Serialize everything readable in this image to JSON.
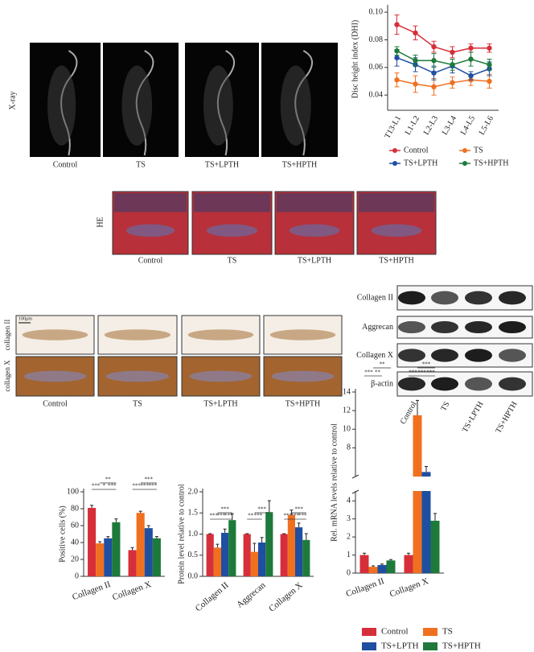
{
  "xray": {
    "label": "X-ray",
    "groups": [
      "Control",
      "TS",
      "TS+LPTH",
      "TS+HPTH"
    ]
  },
  "he": {
    "label": "HE",
    "groups": [
      "Control",
      "TS",
      "TS+LPTH",
      "TS+HPTH"
    ]
  },
  "ihc": {
    "rows": [
      "collagen II",
      "collagen X"
    ],
    "scale": "100μm",
    "groups": [
      "Control",
      "TS",
      "TS+LPTH",
      "TS+HPTH"
    ]
  },
  "western": {
    "rows": [
      "Collagen II",
      "Aggrecan",
      "Collagen X",
      "β-actin"
    ],
    "lanes": [
      "Control",
      "TS",
      "TS+LPTH",
      "TS+HPTH"
    ]
  },
  "chart_data": [
    {
      "type": "line",
      "ylabel": "Disc height index (DHI)",
      "categories": [
        "T13-L1",
        "L1-L2",
        "L2-L3",
        "L3-L4",
        "L4-L5",
        "L5-L6"
      ],
      "ylim": [
        0.029,
        0.103
      ],
      "yticks": [
        0.04,
        0.06,
        0.08,
        {
          "value": 0.1,
          "label": "0.10"
        }
      ],
      "series": [
        {
          "name": "Control",
          "color": "#d62f3a",
          "values": [
            0.091,
            0.085,
            0.075,
            0.071,
            0.074,
            0.074
          ],
          "errors": [
            0.007,
            0.005,
            0.004,
            0.004,
            0.003,
            0.003
          ]
        },
        {
          "name": "TS",
          "color": "#f07020",
          "values": [
            0.051,
            0.048,
            0.046,
            0.049,
            0.051,
            0.05
          ],
          "errors": [
            0.005,
            0.006,
            0.006,
            0.004,
            0.004,
            0.005
          ]
        },
        {
          "name": "TS+LPTH",
          "color": "#1f4fa0",
          "values": [
            0.067,
            0.062,
            0.056,
            0.061,
            0.054,
            0.059
          ],
          "errors": [
            0.006,
            0.005,
            0.005,
            0.005,
            0.003,
            0.005
          ]
        },
        {
          "name": "TS+HPTH",
          "color": "#1e7a3a",
          "values": [
            0.072,
            0.065,
            0.065,
            0.062,
            0.066,
            0.062
          ],
          "errors": [
            0.003,
            0.004,
            0.005,
            0.004,
            0.005,
            0.004
          ]
        }
      ]
    },
    {
      "type": "bar",
      "ylabel": "Positive cells (%)",
      "categories": [
        "Collagen II",
        "Collagen X"
      ],
      "ylim": [
        0,
        100
      ],
      "yticks": [
        0,
        20,
        40,
        60,
        80,
        100
      ],
      "series": [
        {
          "name": "Control",
          "color": "#d62f3a",
          "values": [
            81,
            31
          ],
          "errors": [
            3,
            3
          ]
        },
        {
          "name": "TS",
          "color": "#f07020",
          "values": [
            39,
            75
          ],
          "errors": [
            2,
            2
          ]
        },
        {
          "name": "TS+LPTH",
          "color": "#1f4fa0",
          "values": [
            45,
            57
          ],
          "errors": [
            2,
            3
          ]
        },
        {
          "name": "TS+HPTH",
          "color": "#1e7a3a",
          "values": [
            64,
            45
          ],
          "errors": [
            4,
            2
          ]
        }
      ],
      "annotations": [
        {
          "top": "**",
          "low": [
            "***",
            "*",
            "***"
          ]
        },
        {
          "top": "***",
          "low": [
            "***",
            "***",
            "***"
          ]
        }
      ]
    },
    {
      "type": "bar",
      "ylabel": "Protein level relative to control",
      "categories": [
        "Collagen II",
        "Aggrecan",
        "Collagen X"
      ],
      "ylim": [
        0,
        2
      ],
      "yticks": [
        {
          "value": 0,
          "label": "0.0"
        },
        0.5,
        {
          "value": 1,
          "label": "1.0"
        },
        1.5,
        {
          "value": 2,
          "label": "2.0"
        }
      ],
      "series": [
        {
          "color": "#d62f3a",
          "values": [
            1,
            1,
            1
          ],
          "errors": [
            0.01,
            0.01,
            0.01
          ]
        },
        {
          "color": "#f07020",
          "values": [
            0.68,
            0.58,
            1.45
          ],
          "errors": [
            0.08,
            0.2,
            0.12
          ]
        },
        {
          "color": "#1f4fa0",
          "values": [
            1.03,
            0.8,
            1.16
          ],
          "errors": [
            0.09,
            0.12,
            0.1
          ]
        },
        {
          "color": "#1e7a3a",
          "values": [
            1.33,
            1.52,
            0.86
          ],
          "errors": [
            0.15,
            0.27,
            0.15
          ]
        }
      ],
      "annotations": [
        {
          "top": "***",
          "low": [
            "***",
            "***",
            "***"
          ]
        },
        {
          "top": "***",
          "low": [
            "**",
            "***"
          ]
        },
        {
          "top": "***",
          "low": [
            "***",
            "***",
            "***"
          ]
        }
      ]
    },
    {
      "type": "bar",
      "ylabel": "Rel. mRNA levels relative to control",
      "categories": [
        "Collagen II",
        "Collagen X"
      ],
      "ylim": [
        0,
        14
      ],
      "ybreak": [
        4.5,
        5
      ],
      "yticks": [
        0,
        1,
        2,
        3,
        4,
        8,
        10,
        12,
        14
      ],
      "series": [
        {
          "color": "#d62f3a",
          "values": [
            1,
            1
          ],
          "errors": [
            0.1,
            0.1
          ]
        },
        {
          "color": "#f07020",
          "values": [
            0.35,
            11.5
          ],
          "errors": [
            0.05,
            1.6
          ]
        },
        {
          "color": "#1f4fa0",
          "values": [
            0.45,
            5.4
          ],
          "errors": [
            0.05,
            0.6
          ]
        },
        {
          "color": "#1e7a3a",
          "values": [
            0.7,
            2.9
          ],
          "errors": [
            0.05,
            0.4
          ]
        }
      ],
      "annotations": [
        {
          "top": "**",
          "low": [
            "***",
            "**"
          ]
        },
        {
          "top": "***",
          "low": [
            "***",
            "***",
            "***"
          ]
        }
      ]
    }
  ]
}
